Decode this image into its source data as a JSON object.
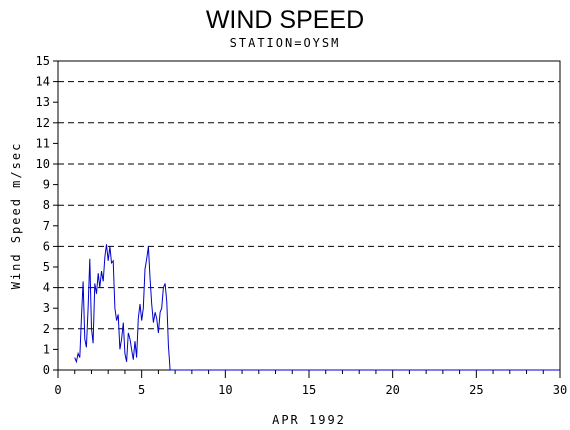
{
  "chart_data": {
    "type": "line",
    "title": "WIND SPEED",
    "subtitle": "STATION=OYSM",
    "xlabel": "APR 1992",
    "ylabel": "Wind Speed m/sec",
    "xlim": [
      0,
      30
    ],
    "ylim": [
      0,
      15
    ],
    "xticks": [
      0,
      5,
      10,
      15,
      20,
      25,
      30
    ],
    "yticks": [
      0,
      1,
      2,
      3,
      4,
      5,
      6,
      7,
      8,
      9,
      10,
      11,
      12,
      13,
      14,
      15
    ],
    "dashed_gridlines_y": [
      2,
      4,
      6,
      8,
      10,
      12,
      14
    ],
    "line_color": "#0000cc",
    "series": [
      {
        "name": "",
        "x": [
          1.0,
          1.1,
          1.2,
          1.3,
          1.4,
          1.5,
          1.6,
          1.7,
          1.8,
          1.9,
          2.0,
          2.1,
          2.2,
          2.3,
          2.4,
          2.5,
          2.6,
          2.7,
          2.8,
          2.9,
          3.0,
          3.1,
          3.2,
          3.3,
          3.4,
          3.5,
          3.6,
          3.7,
          3.8,
          3.9,
          4.0,
          4.1,
          4.2,
          4.3,
          4.4,
          4.5,
          4.6,
          4.7,
          4.8,
          4.9,
          5.0,
          5.1,
          5.2,
          5.3,
          5.4,
          5.5,
          5.6,
          5.7,
          5.8,
          5.9,
          6.0,
          6.1,
          6.2,
          6.3,
          6.4,
          6.5,
          6.6,
          6.7,
          6.75,
          8,
          10,
          15,
          20,
          25,
          30
        ],
        "y": [
          0.6,
          0.4,
          0.8,
          0.6,
          2.5,
          4.3,
          1.5,
          1.1,
          3.0,
          5.4,
          2.0,
          1.3,
          4.2,
          3.7,
          4.7,
          4.0,
          4.8,
          4.3,
          5.5,
          6.1,
          5.3,
          6.0,
          5.2,
          5.3,
          3.0,
          2.4,
          2.7,
          1.0,
          1.5,
          2.3,
          0.8,
          0.4,
          1.8,
          1.5,
          1.0,
          0.5,
          1.4,
          0.6,
          2.5,
          3.2,
          2.4,
          3.0,
          4.9,
          5.4,
          6.0,
          4.5,
          3.2,
          2.3,
          2.8,
          2.5,
          1.8,
          2.8,
          3.0,
          4.0,
          4.2,
          3.3,
          1.2,
          0.0,
          0.0,
          0.0,
          0.0,
          0.0,
          0.0,
          0.0,
          0.0
        ]
      }
    ]
  }
}
